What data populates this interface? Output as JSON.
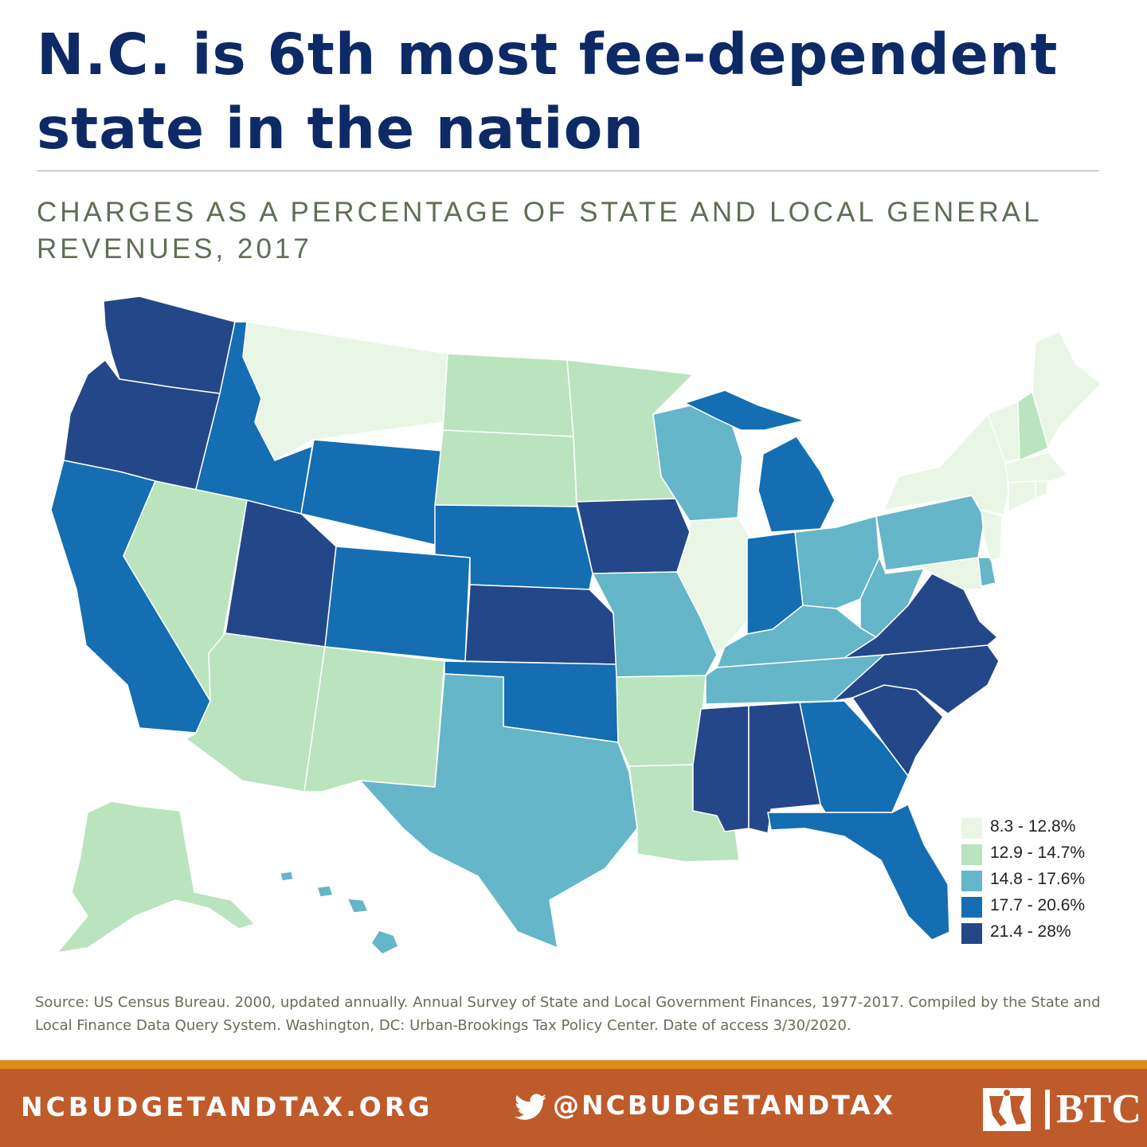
{
  "header": {
    "title": "N.C. is 6th most fee-dependent state in the nation",
    "subtitle": "CHARGES AS A PERCENTAGE OF STATE AND LOCAL GENERAL REVENUES, 2017"
  },
  "legend": {
    "items": [
      {
        "label": "8.3 - 12.8%",
        "color": "#e9f6e6"
      },
      {
        "label": "12.9 - 14.7%",
        "color": "#bae4be"
      },
      {
        "label": "14.8 - 17.6%",
        "color": "#64b6c8"
      },
      {
        "label": "17.7 - 20.6%",
        "color": "#146eb1"
      },
      {
        "label": "21.4 - 28%",
        "color": "#244789"
      }
    ]
  },
  "map": {
    "states": {
      "WA": 4,
      "OR": 4,
      "CA": 3,
      "ID": 3,
      "NV": 1,
      "MT": 0,
      "WY": 3,
      "UT": 4,
      "AZ": 1,
      "CO": 3,
      "NM": 1,
      "ND": 1,
      "SD": 1,
      "NE": 3,
      "KS": 4,
      "OK": 3,
      "TX": 2,
      "MN": 1,
      "IA": 4,
      "MO": 2,
      "AR": 1,
      "LA": 1,
      "WI": 2,
      "IL": 0,
      "MI": 3,
      "IN": 3,
      "OH": 2,
      "KY": 2,
      "TN": 2,
      "MS": 4,
      "AL": 4,
      "GA": 3,
      "FL": 3,
      "SC": 4,
      "NC": 4,
      "VA": 4,
      "WV": 2,
      "PA": 2,
      "NY": 0,
      "ME": 0,
      "NH": 1,
      "VT": 0,
      "MA": 0,
      "RI": 0,
      "CT": 0,
      "NJ": 0,
      "DE": 2,
      "MD": 0,
      "AK": 1,
      "HI": 2
    }
  },
  "source": "Source: US Census Bureau. 2000, updated annually. Annual Survey of State and Local Government Finances, 1977-2017. Compiled by the State and Local Finance Data Query System. Washington, DC: Urban-Brookings Tax Policy Center. Date of access 3/30/2020.",
  "footer": {
    "website": "NCBUDGETANDTAX.ORG",
    "twitter": "@NCBUDGETANDTAX",
    "logo_text": "BTC",
    "icons": [
      "twitter-bird-icon",
      "btc-logo-icon"
    ]
  }
}
